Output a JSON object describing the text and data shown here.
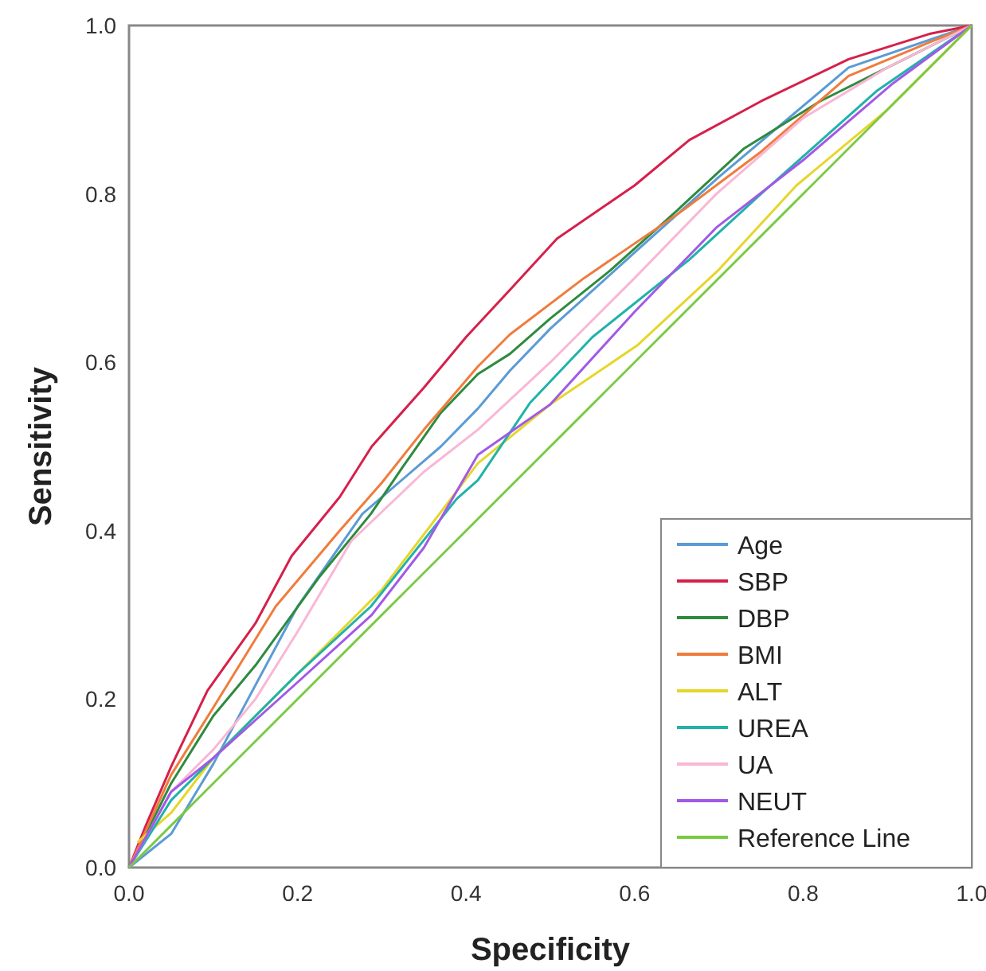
{
  "chart_data": {
    "type": "line",
    "xlabel": "Specificity",
    "ylabel": "Sensitivity",
    "xlim": [
      0,
      1
    ],
    "ylim": [
      0,
      1
    ],
    "xticks": [
      {
        "value": 0,
        "label": "0.0"
      },
      {
        "value": 0.2,
        "label": "0.2"
      },
      {
        "value": 0.4,
        "label": "0.4"
      },
      {
        "value": 0.6,
        "label": "0.6"
      },
      {
        "value": 0.8,
        "label": "0.8"
      },
      {
        "value": 1,
        "label": "1.0"
      }
    ],
    "yticks": [
      {
        "value": 0,
        "label": "0.0"
      },
      {
        "value": 0.2,
        "label": "0.2"
      },
      {
        "value": 0.4,
        "label": "0.4"
      },
      {
        "value": 0.6,
        "label": "0.6"
      },
      {
        "value": 0.8,
        "label": "0.8"
      },
      {
        "value": 1,
        "label": "1.0"
      }
    ],
    "grid": false,
    "legend": "bottom right",
    "marker": "none",
    "line_style": "solid",
    "series": [
      {
        "name": "Age",
        "color": "#5b9bd5",
        "x": [
          0,
          0.05,
          0.1,
          0.2,
          0.277,
          0.37,
          0.414,
          0.452,
          0.5,
          0.603,
          0.7,
          0.854,
          1
        ],
        "values": [
          0,
          0.04,
          0.123,
          0.31,
          0.42,
          0.5,
          0.545,
          0.59,
          0.64,
          0.733,
          0.82,
          0.95,
          1
        ]
      },
      {
        "name": "SBP",
        "color": "#d6204a",
        "x": [
          0,
          0.02,
          0.05,
          0.093,
          0.15,
          0.193,
          0.25,
          0.288,
          0.35,
          0.4,
          0.452,
          0.508,
          0.6,
          0.665,
          0.75,
          0.854,
          0.95,
          1
        ],
        "values": [
          0,
          0.05,
          0.12,
          0.21,
          0.29,
          0.37,
          0.44,
          0.5,
          0.57,
          0.63,
          0.686,
          0.747,
          0.81,
          0.864,
          0.91,
          0.96,
          0.99,
          1
        ]
      },
      {
        "name": "DBP",
        "color": "#2e8b3e",
        "x": [
          0,
          0.05,
          0.1,
          0.15,
          0.225,
          0.287,
          0.325,
          0.37,
          0.414,
          0.452,
          0.5,
          0.571,
          0.65,
          0.73,
          0.82,
          0.92,
          1
        ],
        "values": [
          0,
          0.1,
          0.18,
          0.24,
          0.344,
          0.42,
          0.476,
          0.54,
          0.586,
          0.61,
          0.652,
          0.709,
          0.78,
          0.854,
          0.91,
          0.96,
          1
        ]
      },
      {
        "name": "BMI",
        "color": "#f07c3c",
        "x": [
          0,
          0.05,
          0.1,
          0.174,
          0.25,
          0.3,
          0.35,
          0.414,
          0.452,
          0.54,
          0.654,
          0.75,
          0.854,
          0.95,
          1
        ],
        "values": [
          0,
          0.11,
          0.19,
          0.31,
          0.4,
          0.457,
          0.52,
          0.595,
          0.633,
          0.7,
          0.778,
          0.85,
          0.94,
          0.98,
          1
        ]
      },
      {
        "name": "ALT",
        "color": "#e6d62a",
        "x": [
          0.01,
          0.05,
          0.1,
          0.2,
          0.3,
          0.414,
          0.5,
          0.603,
          0.7,
          0.792,
          0.9,
          1
        ],
        "values": [
          0.03,
          0.065,
          0.13,
          0.23,
          0.33,
          0.48,
          0.55,
          0.62,
          0.71,
          0.81,
          0.9,
          1
        ]
      },
      {
        "name": "UREA",
        "color": "#20b2aa",
        "x": [
          0,
          0.05,
          0.1,
          0.2,
          0.287,
          0.389,
          0.414,
          0.476,
          0.55,
          0.665,
          0.75,
          0.887,
          1
        ],
        "values": [
          0,
          0.08,
          0.13,
          0.23,
          0.31,
          0.438,
          0.46,
          0.552,
          0.63,
          0.722,
          0.8,
          0.922,
          1
        ]
      },
      {
        "name": "UA",
        "color": "#f9b7d5",
        "x": [
          0,
          0.05,
          0.1,
          0.15,
          0.2,
          0.264,
          0.35,
          0.414,
          0.5,
          0.6,
          0.697,
          0.8,
          0.9,
          1
        ],
        "values": [
          0,
          0.09,
          0.14,
          0.2,
          0.28,
          0.388,
          0.47,
          0.52,
          0.6,
          0.7,
          0.8,
          0.89,
          0.95,
          1
        ]
      },
      {
        "name": "NEUT",
        "color": "#a259e6",
        "x": [
          0,
          0.05,
          0.1,
          0.2,
          0.288,
          0.35,
          0.414,
          0.5,
          0.6,
          0.697,
          0.8,
          0.905,
          1
        ],
        "values": [
          0,
          0.09,
          0.13,
          0.22,
          0.3,
          0.38,
          0.49,
          0.55,
          0.66,
          0.76,
          0.84,
          0.93,
          1
        ]
      },
      {
        "name": "Reference Line",
        "color": "#7ac943",
        "x": [
          0,
          1
        ],
        "values": [
          0,
          1
        ]
      }
    ]
  }
}
